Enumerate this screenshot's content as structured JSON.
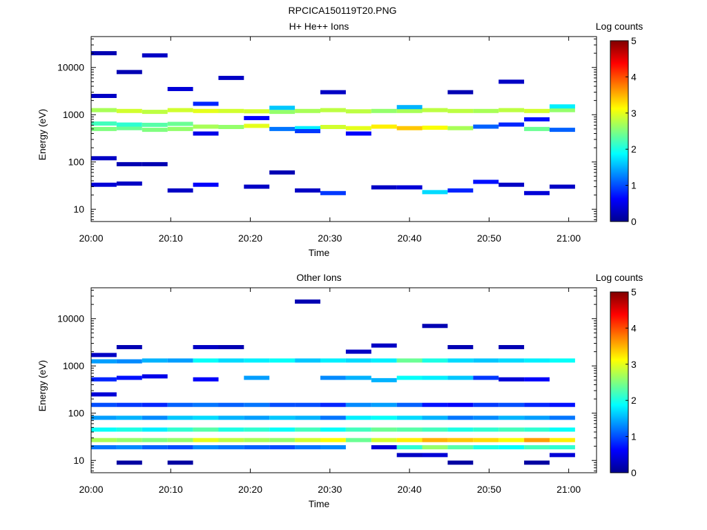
{
  "figure_title": "RPCICA150119T20.PNG",
  "chart_data": [
    {
      "type": "heatmap",
      "title": "H+ He++ Ions",
      "xlabel": "Time",
      "ylabel": "Energy (eV)",
      "x_ticks": [
        "20:00",
        "20:10",
        "20:20",
        "20:30",
        "20:40",
        "20:50",
        "21:00"
      ],
      "x_tick_minutes": [
        0,
        10,
        20,
        30,
        40,
        50,
        60
      ],
      "xlim_minutes": [
        0,
        63.5
      ],
      "y_scale": "log",
      "ylim": [
        5.5,
        45000
      ],
      "y_ticks": [
        "10",
        "100",
        "1000",
        "10000"
      ],
      "y_tick_values": [
        10,
        100,
        1000,
        10000
      ],
      "colorbar": {
        "label": "Log counts",
        "min": 0,
        "max": 5,
        "ticks": [
          "0",
          "1",
          "2",
          "3",
          "4",
          "5"
        ]
      },
      "time_bins_minutes": [
        0,
        3.2,
        6.4,
        9.6,
        12.8,
        16,
        19.2,
        22.4,
        25.6,
        28.8,
        32,
        35.2,
        38.4,
        41.6,
        44.8,
        48,
        51.2,
        54.4,
        57.6,
        60.8
      ],
      "cells": [
        [
          0,
          33,
          0.4
        ],
        [
          0,
          120,
          0.3
        ],
        [
          0,
          500,
          2.5
        ],
        [
          0,
          650,
          2.2
        ],
        [
          0,
          1250,
          2.7
        ],
        [
          0,
          2500,
          0.3
        ],
        [
          0,
          20000,
          0.2
        ],
        [
          1,
          35,
          0.3
        ],
        [
          1,
          90,
          0.2
        ],
        [
          1,
          520,
          2.4
        ],
        [
          1,
          620,
          2.1
        ],
        [
          1,
          1200,
          2.9
        ],
        [
          1,
          8000,
          0.2
        ],
        [
          2,
          90,
          0.2
        ],
        [
          2,
          480,
          2.5
        ],
        [
          2,
          610,
          2.3
        ],
        [
          2,
          1150,
          2.8
        ],
        [
          2,
          18000,
          0.3
        ],
        [
          3,
          25,
          0.3
        ],
        [
          3,
          500,
          2.6
        ],
        [
          3,
          640,
          2.4
        ],
        [
          3,
          1250,
          2.9
        ],
        [
          3,
          3500,
          0.4
        ],
        [
          4,
          33,
          0.6
        ],
        [
          4,
          400,
          0.5
        ],
        [
          4,
          560,
          2.7
        ],
        [
          4,
          1200,
          3.0
        ],
        [
          4,
          1700,
          0.8
        ],
        [
          5,
          550,
          2.6
        ],
        [
          5,
          1200,
          2.9
        ],
        [
          5,
          6000,
          0.3
        ],
        [
          6,
          30,
          0.3
        ],
        [
          6,
          580,
          3.0
        ],
        [
          6,
          1180,
          2.9
        ],
        [
          6,
          850,
          0.6
        ],
        [
          7,
          60,
          0.2
        ],
        [
          7,
          500,
          1.2
        ],
        [
          7,
          1150,
          2.6
        ],
        [
          7,
          1400,
          1.6
        ],
        [
          8,
          25,
          0.3
        ],
        [
          8,
          520,
          1.8
        ],
        [
          8,
          1200,
          2.7
        ],
        [
          8,
          450,
          0.9
        ],
        [
          9,
          22,
          0.9
        ],
        [
          9,
          550,
          2.9
        ],
        [
          9,
          1250,
          2.8
        ],
        [
          9,
          3000,
          0.3
        ],
        [
          10,
          520,
          3.0
        ],
        [
          10,
          1180,
          2.8
        ],
        [
          10,
          400,
          0.6
        ],
        [
          11,
          29,
          0.3
        ],
        [
          11,
          560,
          3.2
        ],
        [
          11,
          1200,
          2.6
        ],
        [
          12,
          29,
          0.4
        ],
        [
          12,
          520,
          3.4
        ],
        [
          12,
          1200,
          2.7
        ],
        [
          12,
          1450,
          1.5
        ],
        [
          13,
          23,
          1.7
        ],
        [
          13,
          530,
          3.1
        ],
        [
          13,
          1250,
          2.8
        ],
        [
          14,
          25,
          0.8
        ],
        [
          14,
          520,
          2.7
        ],
        [
          14,
          1200,
          2.8
        ],
        [
          14,
          3000,
          0.2
        ],
        [
          15,
          38,
          0.7
        ],
        [
          15,
          560,
          1.1
        ],
        [
          15,
          1200,
          2.7
        ],
        [
          16,
          33,
          0.3
        ],
        [
          16,
          620,
          0.8
        ],
        [
          16,
          1250,
          2.8
        ],
        [
          16,
          5000,
          0.3
        ],
        [
          17,
          22,
          0.4
        ],
        [
          17,
          500,
          2.4
        ],
        [
          17,
          1200,
          2.9
        ],
        [
          17,
          800,
          0.7
        ],
        [
          18,
          30,
          0.3
        ],
        [
          18,
          480,
          1.1
        ],
        [
          18,
          1250,
          2.6
        ],
        [
          18,
          1500,
          1.8
        ]
      ]
    },
    {
      "type": "heatmap",
      "title": "Other Ions",
      "xlabel": "Time",
      "ylabel": "Energy (eV)",
      "x_ticks": [
        "20:00",
        "20:10",
        "20:20",
        "20:30",
        "20:40",
        "20:50",
        "21:00"
      ],
      "x_tick_minutes": [
        0,
        10,
        20,
        30,
        40,
        50,
        60
      ],
      "xlim_minutes": [
        0,
        63.5
      ],
      "y_scale": "log",
      "ylim": [
        5.5,
        45000
      ],
      "y_ticks": [
        "10",
        "100",
        "1000",
        "10000"
      ],
      "y_tick_values": [
        10,
        100,
        1000,
        10000
      ],
      "colorbar": {
        "label": "Log counts",
        "min": 0,
        "max": 5,
        "ticks": [
          "0",
          "1",
          "2",
          "3",
          "4",
          "5"
        ]
      },
      "time_bins_minutes": [
        0,
        3.2,
        6.4,
        9.6,
        12.8,
        16,
        19.2,
        22.4,
        25.6,
        28.8,
        32,
        35.2,
        38.4,
        41.6,
        44.8,
        48,
        51.2,
        54.4,
        57.6,
        60.8
      ],
      "cells": [
        [
          0,
          19,
          1.2
        ],
        [
          0,
          27,
          2.7
        ],
        [
          0,
          45,
          1.9
        ],
        [
          0,
          80,
          1.4
        ],
        [
          0,
          150,
          1.0
        ],
        [
          0,
          250,
          0.4
        ],
        [
          0,
          520,
          0.8
        ],
        [
          0,
          1250,
          1.4
        ],
        [
          0,
          1700,
          0.3
        ],
        [
          1,
          9,
          0.1
        ],
        [
          1,
          19,
          1.3
        ],
        [
          1,
          27,
          2.6
        ],
        [
          1,
          45,
          2.0
        ],
        [
          1,
          80,
          1.5
        ],
        [
          1,
          150,
          0.9
        ],
        [
          1,
          560,
          0.7
        ],
        [
          1,
          1250,
          1.3
        ],
        [
          1,
          2500,
          0.2
        ],
        [
          2,
          19,
          1.1
        ],
        [
          2,
          27,
          2.5
        ],
        [
          2,
          45,
          1.8
        ],
        [
          2,
          80,
          1.3
        ],
        [
          2,
          150,
          0.8
        ],
        [
          2,
          600,
          0.5
        ],
        [
          2,
          1300,
          1.5
        ],
        [
          3,
          9,
          0.1
        ],
        [
          3,
          19,
          1.0
        ],
        [
          3,
          27,
          2.6
        ],
        [
          3,
          45,
          2.1
        ],
        [
          3,
          80,
          1.6
        ],
        [
          3,
          150,
          1.1
        ],
        [
          3,
          1300,
          1.4
        ],
        [
          4,
          19,
          1.3
        ],
        [
          4,
          27,
          3.0
        ],
        [
          4,
          45,
          2.3
        ],
        [
          4,
          80,
          1.7
        ],
        [
          4,
          150,
          1.2
        ],
        [
          4,
          520,
          0.6
        ],
        [
          4,
          1300,
          1.9
        ],
        [
          4,
          2500,
          0.3
        ],
        [
          5,
          19,
          1.2
        ],
        [
          5,
          27,
          2.8
        ],
        [
          5,
          45,
          2.0
        ],
        [
          5,
          80,
          1.5
        ],
        [
          5,
          150,
          1.1
        ],
        [
          5,
          1300,
          1.7
        ],
        [
          5,
          2500,
          0.2
        ],
        [
          6,
          19,
          1.1
        ],
        [
          6,
          27,
          2.7
        ],
        [
          6,
          45,
          2.1
        ],
        [
          6,
          80,
          1.4
        ],
        [
          6,
          150,
          1.2
        ],
        [
          6,
          560,
          1.4
        ],
        [
          6,
          1300,
          1.8
        ],
        [
          7,
          19,
          1.0
        ],
        [
          7,
          27,
          2.6
        ],
        [
          7,
          45,
          1.9
        ],
        [
          7,
          80,
          1.6
        ],
        [
          7,
          150,
          1.0
        ],
        [
          7,
          1300,
          1.9
        ],
        [
          8,
          19,
          1.2
        ],
        [
          8,
          27,
          2.9
        ],
        [
          8,
          45,
          2.2
        ],
        [
          8,
          80,
          1.5
        ],
        [
          8,
          150,
          1.0
        ],
        [
          8,
          1300,
          1.6
        ],
        [
          8,
          23000,
          0.2
        ],
        [
          9,
          19,
          1.3
        ],
        [
          9,
          27,
          3.1
        ],
        [
          9,
          45,
          1.9
        ],
        [
          9,
          80,
          1.2
        ],
        [
          9,
          150,
          0.8
        ],
        [
          9,
          560,
          1.3
        ],
        [
          9,
          1300,
          1.8
        ],
        [
          10,
          27,
          2.4
        ],
        [
          10,
          45,
          2.2
        ],
        [
          10,
          80,
          1.8
        ],
        [
          10,
          150,
          1.3
        ],
        [
          10,
          560,
          1.5
        ],
        [
          10,
          1300,
          1.7
        ],
        [
          10,
          2000,
          0.3
        ],
        [
          11,
          19,
          0.4
        ],
        [
          11,
          27,
          2.9
        ],
        [
          11,
          45,
          2.4
        ],
        [
          11,
          80,
          1.9
        ],
        [
          11,
          150,
          1.4
        ],
        [
          11,
          500,
          1.5
        ],
        [
          11,
          1300,
          1.8
        ],
        [
          11,
          2700,
          0.3
        ],
        [
          12,
          13,
          0.3
        ],
        [
          12,
          19,
          2.1
        ],
        [
          12,
          27,
          3.2
        ],
        [
          12,
          45,
          2.3
        ],
        [
          12,
          80,
          1.7
        ],
        [
          12,
          150,
          1.1
        ],
        [
          12,
          560,
          1.9
        ],
        [
          12,
          1300,
          2.4
        ],
        [
          13,
          13,
          0.4
        ],
        [
          13,
          19,
          2.6
        ],
        [
          13,
          27,
          3.5
        ],
        [
          13,
          45,
          2.2
        ],
        [
          13,
          80,
          1.5
        ],
        [
          13,
          150,
          0.7
        ],
        [
          13,
          560,
          1.8
        ],
        [
          13,
          1300,
          2.0
        ],
        [
          13,
          7000,
          0.2
        ],
        [
          14,
          9,
          0.1
        ],
        [
          14,
          19,
          2.3
        ],
        [
          14,
          27,
          3.4
        ],
        [
          14,
          45,
          2.0
        ],
        [
          14,
          80,
          1.2
        ],
        [
          14,
          150,
          0.6
        ],
        [
          14,
          560,
          1.6
        ],
        [
          14,
          1300,
          1.7
        ],
        [
          14,
          2500,
          0.2
        ],
        [
          15,
          19,
          2.0
        ],
        [
          15,
          27,
          3.3
        ],
        [
          15,
          45,
          2.1
        ],
        [
          15,
          80,
          1.3
        ],
        [
          15,
          150,
          0.9
        ],
        [
          15,
          560,
          0.9
        ],
        [
          15,
          1300,
          1.6
        ],
        [
          16,
          19,
          1.9
        ],
        [
          16,
          27,
          3.1
        ],
        [
          16,
          45,
          2.2
        ],
        [
          16,
          80,
          1.5
        ],
        [
          16,
          150,
          1.0
        ],
        [
          16,
          520,
          0.4
        ],
        [
          16,
          1300,
          1.7
        ],
        [
          16,
          2500,
          0.2
        ],
        [
          17,
          9,
          0.1
        ],
        [
          17,
          19,
          2.2
        ],
        [
          17,
          27,
          3.6
        ],
        [
          17,
          45,
          2.1
        ],
        [
          17,
          80,
          1.4
        ],
        [
          17,
          150,
          0.8
        ],
        [
          17,
          520,
          0.6
        ],
        [
          17,
          1300,
          1.8
        ],
        [
          18,
          13,
          0.4
        ],
        [
          18,
          19,
          2.1
        ],
        [
          18,
          27,
          3.2
        ],
        [
          18,
          45,
          1.9
        ],
        [
          18,
          80,
          1.2
        ],
        [
          18,
          150,
          0.7
        ],
        [
          18,
          1300,
          1.9
        ]
      ]
    }
  ]
}
